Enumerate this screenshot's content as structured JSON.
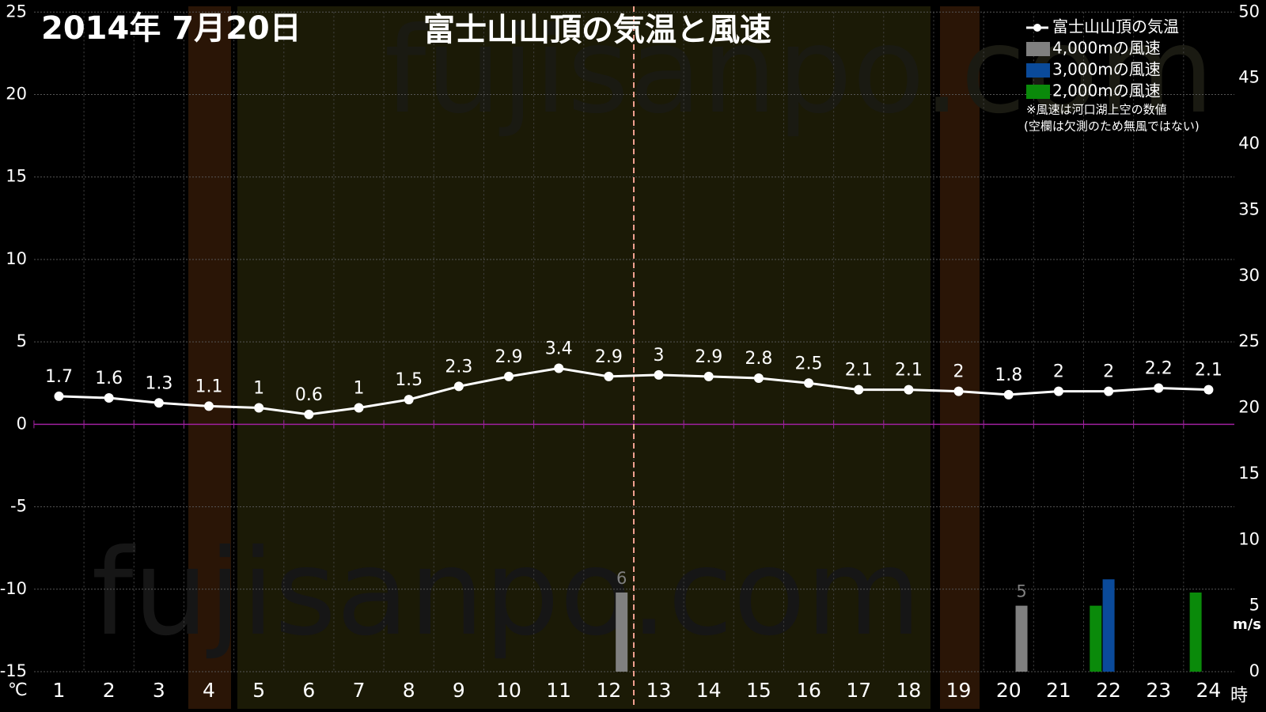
{
  "chart_data": {
    "type": "combo",
    "title": "2014年 7月20日",
    "subtitle": "富士山山頂の気温と風速",
    "watermark": "fujisanpo.com",
    "y_label": "℃",
    "y2_label": "m/s",
    "x_label": "時",
    "note": [
      "※風速は河口湖上空の数値",
      "(空欄は欠測のため無風ではない)"
    ],
    "categories": [
      "1",
      "2",
      "3",
      "4",
      "5",
      "6",
      "7",
      "8",
      "9",
      "10",
      "11",
      "12",
      "13",
      "14",
      "15",
      "16",
      "17",
      "18",
      "19",
      "20",
      "21",
      "22",
      "23",
      "24"
    ],
    "ylim": [
      -15,
      25
    ],
    "yticks": [
      -15,
      -10,
      -5,
      0,
      5,
      10,
      15,
      20,
      25
    ],
    "y2lim": [
      0,
      50
    ],
    "y2ticks": [
      0,
      5,
      10,
      15,
      20,
      25,
      30,
      35,
      40,
      45,
      50
    ],
    "grid": true,
    "legend": "top-right",
    "series": [
      {
        "name": "富士山山頂の気温",
        "type": "line",
        "color": "#ffffff",
        "labels": true,
        "values": [
          1.7,
          1.6,
          1.3,
          1.1,
          1,
          0.6,
          1,
          1.5,
          2.3,
          2.9,
          3.4,
          2.9,
          3,
          2.9,
          2.8,
          2.5,
          2.1,
          2.1,
          2,
          1.8,
          2,
          2,
          2.2,
          2.1
        ]
      },
      {
        "name": "4,000mの風速",
        "type": "bar",
        "axis": "y2",
        "color": "#808080",
        "labels": true,
        "values": [
          null,
          null,
          null,
          null,
          null,
          null,
          null,
          null,
          null,
          null,
          null,
          6,
          null,
          null,
          null,
          null,
          null,
          null,
          null,
          5,
          null,
          null,
          null,
          null
        ]
      },
      {
        "name": "3,000mの風速",
        "type": "bar",
        "axis": "y2",
        "color": "#0a4a9a",
        "labels": false,
        "values": [
          null,
          null,
          null,
          null,
          null,
          null,
          null,
          null,
          null,
          null,
          null,
          null,
          null,
          null,
          null,
          null,
          null,
          null,
          null,
          null,
          null,
          7,
          null,
          null
        ]
      },
      {
        "name": "2,000mの風速",
        "type": "bar",
        "axis": "y2",
        "color": "#0a8a0a",
        "labels": false,
        "values": [
          null,
          null,
          null,
          null,
          null,
          null,
          null,
          null,
          null,
          null,
          null,
          null,
          null,
          null,
          null,
          null,
          null,
          null,
          null,
          null,
          null,
          5,
          null,
          6
        ]
      }
    ]
  }
}
